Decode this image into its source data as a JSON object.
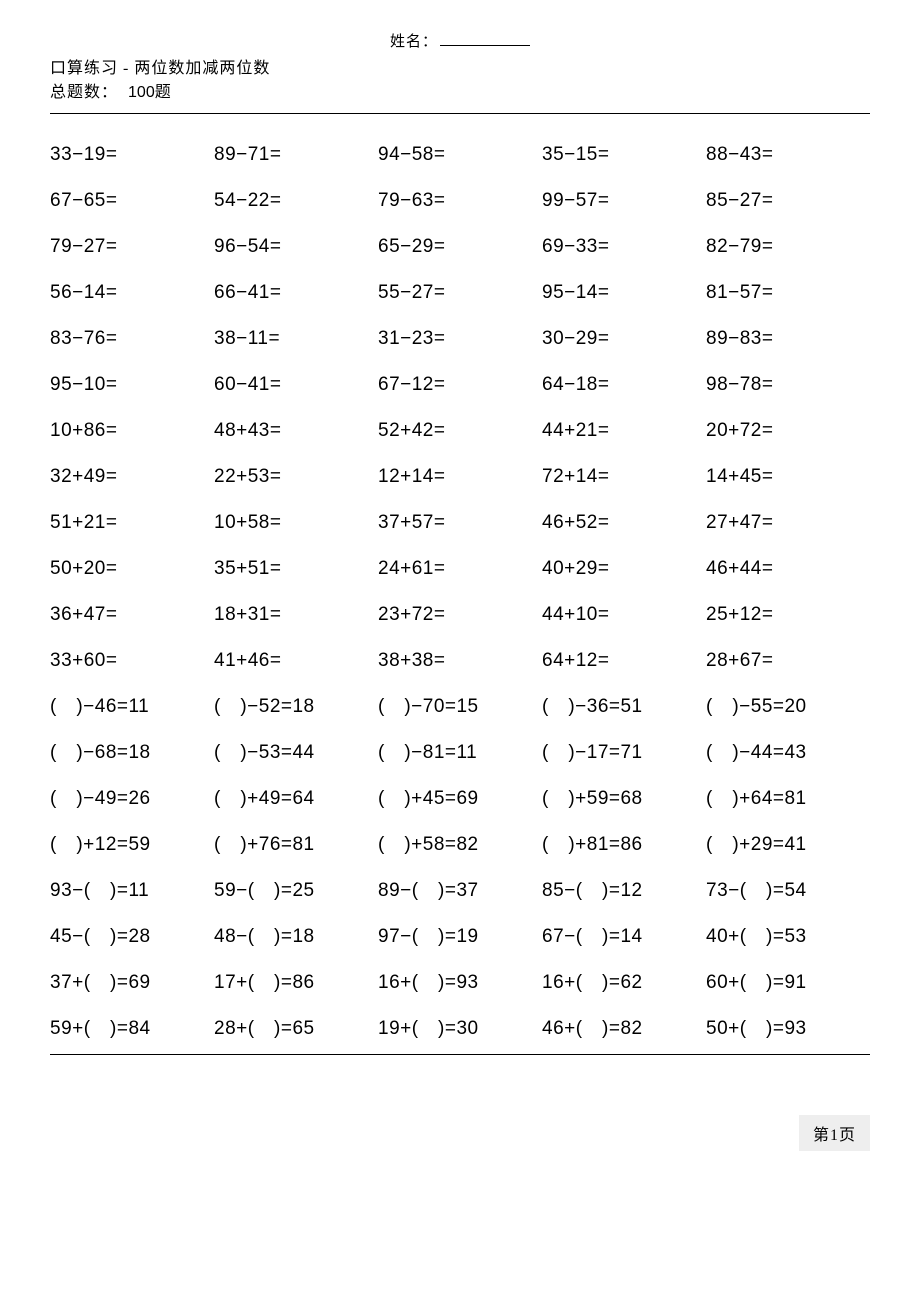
{
  "name_label": "姓名：",
  "title_line1": "口算练习 - 两位数加减两位数",
  "title_line2_prefix": "总题数：",
  "title_line2_count": "100题",
  "page_label": "第1页",
  "problems": [
    [
      "33−19=",
      "89−71=",
      "94−58=",
      "35−15=",
      "88−43="
    ],
    [
      "67−65=",
      "54−22=",
      "79−63=",
      "99−57=",
      "85−27="
    ],
    [
      "79−27=",
      "96−54=",
      "65−29=",
      "69−33=",
      "82−79="
    ],
    [
      "56−14=",
      "66−41=",
      "55−27=",
      "95−14=",
      "81−57="
    ],
    [
      "83−76=",
      "38−11=",
      "31−23=",
      "30−29=",
      "89−83="
    ],
    [
      "95−10=",
      "60−41=",
      "67−12=",
      "64−18=",
      "98−78="
    ],
    [
      "10+86=",
      "48+43=",
      "52+42=",
      "44+21=",
      "20+72="
    ],
    [
      "32+49=",
      "22+53=",
      "12+14=",
      "72+14=",
      "14+45="
    ],
    [
      "51+21=",
      "10+58=",
      "37+57=",
      "46+52=",
      "27+47="
    ],
    [
      "50+20=",
      "35+51=",
      "24+61=",
      "40+29=",
      "46+44="
    ],
    [
      "36+47=",
      "18+31=",
      "23+72=",
      "44+10=",
      "25+12="
    ],
    [
      "33+60=",
      "41+46=",
      "38+38=",
      "64+12=",
      "28+67="
    ],
    [
      "( )−46=11",
      "( )−52=18",
      "( )−70=15",
      "( )−36=51",
      "( )−55=20"
    ],
    [
      "( )−68=18",
      "( )−53=44",
      "( )−81=11",
      "( )−17=71",
      "( )−44=43"
    ],
    [
      "( )−49=26",
      "( )+49=64",
      "( )+45=69",
      "( )+59=68",
      "( )+64=81"
    ],
    [
      "( )+12=59",
      "( )+76=81",
      "( )+58=82",
      "( )+81=86",
      "( )+29=41"
    ],
    [
      "93−( )=11",
      "59−( )=25",
      "89−( )=37",
      "85−( )=12",
      "73−( )=54"
    ],
    [
      "45−( )=28",
      "48−( )=18",
      "97−( )=19",
      "67−( )=14",
      "40+( )=53"
    ],
    [
      "37+( )=69",
      "17+( )=86",
      "16+( )=93",
      "16+( )=62",
      "60+( )=91"
    ],
    [
      "59+( )=84",
      "28+( )=65",
      "19+( )=30",
      "46+( )=82",
      "50+( )=93"
    ]
  ]
}
